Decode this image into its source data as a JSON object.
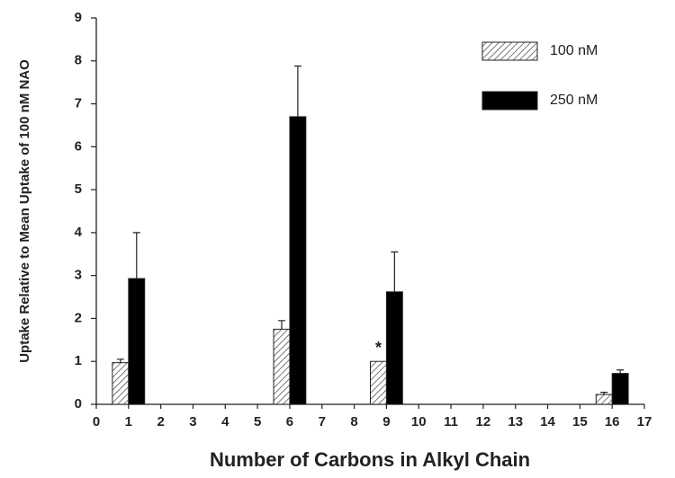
{
  "chart_data": {
    "type": "bar",
    "x_label": "Number of Carbons in Alkyl Chain",
    "y_label": "Uptake Relative to Mean Uptake of 100 nM NAO",
    "x": [
      1,
      6,
      9,
      16
    ],
    "series": [
      {
        "name": "100 nM",
        "color": "#ffffff",
        "hatch": true,
        "values": [
          0.97,
          1.75,
          1.0,
          0.23
        ],
        "errors": [
          0.08,
          0.2,
          null,
          0.05
        ]
      },
      {
        "name": "250 nM",
        "color": "#000000",
        "hatch": false,
        "values": [
          2.93,
          6.7,
          2.62,
          0.72
        ],
        "errors": [
          1.07,
          1.18,
          0.93,
          0.08
        ]
      }
    ],
    "annotations": [
      {
        "text": "*",
        "x": 9,
        "series": 0
      }
    ],
    "xlim": [
      0,
      17
    ],
    "xticks": [
      0,
      1,
      2,
      3,
      4,
      5,
      6,
      7,
      8,
      9,
      10,
      11,
      12,
      13,
      14,
      15,
      16,
      17
    ],
    "ylim": [
      0,
      9
    ],
    "yticks": [
      0,
      1,
      2,
      3,
      4,
      5,
      6,
      7,
      8,
      9
    ],
    "grid": false,
    "legend": "upper right"
  }
}
